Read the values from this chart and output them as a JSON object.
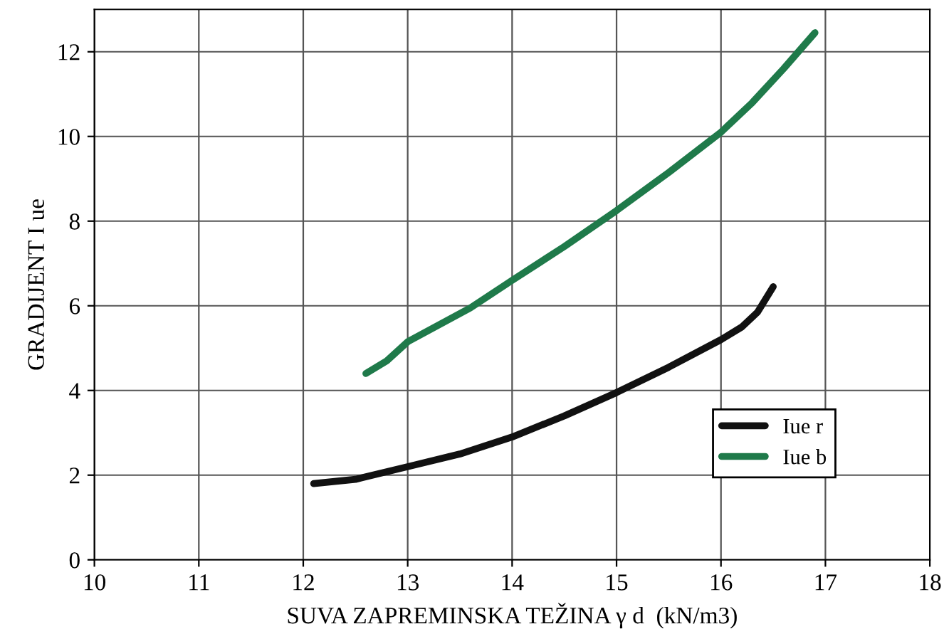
{
  "chart_data": {
    "type": "line",
    "xlabel": "SUVA ZAPREMINSKA TEŽINA γ d  (kN/m3)",
    "ylabel": "GRADIJENT I ue",
    "xlim": [
      10,
      18
    ],
    "xticks": [
      10,
      11,
      12,
      13,
      14,
      15,
      16,
      17,
      18
    ],
    "ylim": [
      0,
      13
    ],
    "yticks": [
      0,
      2,
      4,
      6,
      8,
      10,
      12
    ],
    "grid": true,
    "legend": "lower right",
    "marker": "none",
    "line_style": "solid",
    "series": [
      {
        "name": "Iue r",
        "color": "#111111",
        "x": [
          12.1,
          12.5,
          13,
          13.5,
          14,
          14.5,
          15,
          15.5,
          16,
          16.2,
          16.35,
          16.5
        ],
        "values": [
          1.8,
          1.9,
          2.2,
          2.5,
          2.9,
          3.4,
          3.95,
          4.55,
          5.2,
          5.5,
          5.85,
          6.45
        ]
      },
      {
        "name": "Iue b",
        "color": "#1f7a4a",
        "x": [
          12.6,
          12.8,
          13,
          13.3,
          13.6,
          14,
          14.5,
          15,
          15.5,
          16,
          16.3,
          16.6,
          16.9
        ],
        "values": [
          4.4,
          4.7,
          5.15,
          5.55,
          5.95,
          6.6,
          7.4,
          8.25,
          9.15,
          10.1,
          10.8,
          11.6,
          12.45
        ]
      }
    ]
  }
}
